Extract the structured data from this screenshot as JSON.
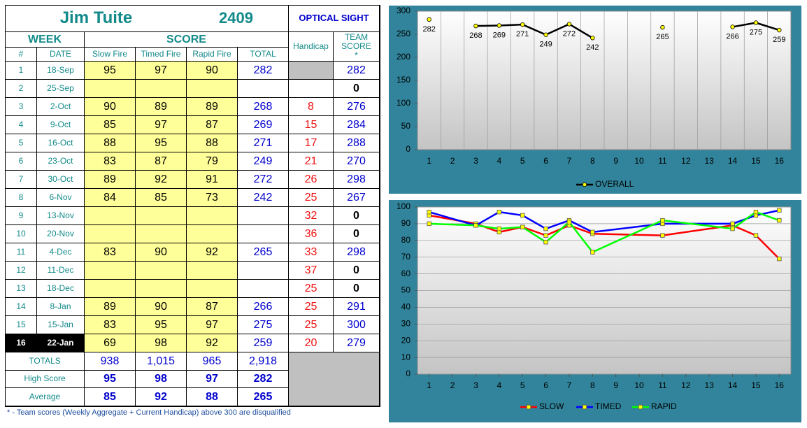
{
  "table": {
    "title": "Jim Tuite",
    "id": "2409",
    "category": "OPTICAL SIGHT",
    "group_headers": [
      "WEEK",
      "SCORE"
    ],
    "columns": [
      "#",
      "DATE",
      "Slow Fire",
      "Timed Fire",
      "Rapid Fire",
      "TOTAL",
      "Handicap",
      "TEAM SCORE *"
    ],
    "rows": [
      [
        1,
        "18-Sep",
        95,
        97,
        90,
        282,
        null,
        282
      ],
      [
        2,
        "25-Sep",
        null,
        null,
        null,
        null,
        null,
        0
      ],
      [
        3,
        "2-Oct",
        90,
        89,
        89,
        268,
        8,
        276
      ],
      [
        4,
        "9-Oct",
        85,
        97,
        87,
        269,
        15,
        284
      ],
      [
        5,
        "16-Oct",
        88,
        95,
        88,
        271,
        17,
        288
      ],
      [
        6,
        "23-Oct",
        83,
        87,
        79,
        249,
        21,
        270
      ],
      [
        7,
        "30-Oct",
        89,
        92,
        91,
        272,
        26,
        298
      ],
      [
        8,
        "6-Nov",
        84,
        85,
        73,
        242,
        25,
        267
      ],
      [
        9,
        "13-Nov",
        null,
        null,
        null,
        null,
        32,
        0
      ],
      [
        10,
        "20-Nov",
        null,
        null,
        null,
        null,
        36,
        0
      ],
      [
        11,
        "4-Dec",
        83,
        90,
        92,
        265,
        33,
        298
      ],
      [
        12,
        "11-Dec",
        null,
        null,
        null,
        null,
        37,
        0
      ],
      [
        13,
        "18-Dec",
        null,
        null,
        null,
        null,
        25,
        0
      ],
      [
        14,
        "8-Jan",
        89,
        90,
        87,
        266,
        25,
        291
      ],
      [
        15,
        "15-Jan",
        83,
        95,
        97,
        275,
        25,
        300
      ],
      [
        16,
        "22-Jan",
        69,
        98,
        92,
        259,
        20,
        279
      ]
    ],
    "current_row": 15,
    "summary": [
      [
        "TOTALS",
        "938",
        "1,015",
        "965",
        "2,918"
      ],
      [
        "High Score",
        95,
        98,
        97,
        282
      ],
      [
        "Average",
        85,
        92,
        88,
        265
      ]
    ]
  },
  "footnote": "* - Team scores (Weekly Aggregate + Current Handicap) above 300 are disqualified",
  "chart_data": [
    {
      "type": "line",
      "categories": [
        "1",
        "2",
        "3",
        "4",
        "5",
        "6",
        "7",
        "8",
        "9",
        "10",
        "11",
        "12",
        "13",
        "14",
        "15",
        "16"
      ],
      "series": [
        {
          "name": "OVERALL",
          "color": "#000000",
          "values": [
            282,
            null,
            268,
            269,
            271,
            249,
            272,
            242,
            null,
            null,
            265,
            null,
            null,
            266,
            275,
            259
          ]
        }
      ],
      "ylim": [
        0,
        300
      ],
      "yticks": [
        0,
        50,
        100,
        150,
        200,
        250,
        300
      ],
      "grid": "x",
      "data_labels": true,
      "marker": "circle",
      "marker_color": "#ffff00",
      "legend": "bottom"
    },
    {
      "type": "line",
      "x": [
        1,
        3,
        4,
        5,
        6,
        7,
        8,
        11,
        14,
        15,
        16
      ],
      "series": [
        {
          "name": "SLOW",
          "color": "#ff0000",
          "values": [
            95,
            90,
            85,
            88,
            83,
            89,
            84,
            83,
            89,
            83,
            69
          ]
        },
        {
          "name": "TIMED",
          "color": "#0000ff",
          "values": [
            97,
            89,
            97,
            95,
            87,
            92,
            85,
            90,
            90,
            95,
            98
          ]
        },
        {
          "name": "RAPID",
          "color": "#00ff00",
          "values": [
            90,
            89,
            87,
            88,
            79,
            91,
            73,
            92,
            87,
            97,
            92
          ]
        }
      ],
      "xlim": [
        0.5,
        16.5
      ],
      "xticks": [
        1,
        2,
        3,
        4,
        5,
        6,
        7,
        8,
        9,
        10,
        11,
        12,
        13,
        14,
        15,
        16
      ],
      "ylim": [
        0,
        100
      ],
      "yticks": [
        0,
        10,
        20,
        30,
        40,
        50,
        60,
        70,
        80,
        90,
        100
      ],
      "grid": "y",
      "data_labels": false,
      "marker": "square",
      "marker_color": "#ffff00",
      "legend": "bottom"
    }
  ]
}
